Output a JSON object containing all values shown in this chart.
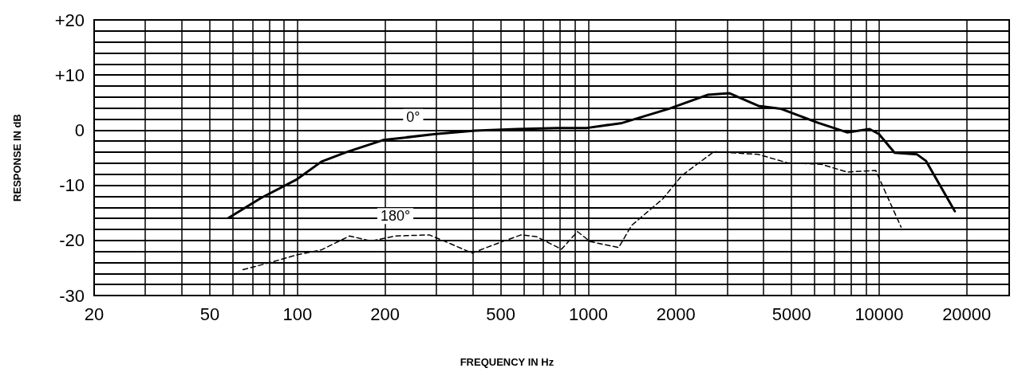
{
  "chart_data": {
    "type": "line",
    "xlabel": "FREQUENCY IN Hz",
    "ylabel": "RESPONSE IN dB",
    "log": "x",
    "grid": true,
    "marker": "none",
    "xlim": [
      20,
      28000
    ],
    "ylim": [
      -30,
      20
    ],
    "xticks": [
      20,
      {
        "value": 30,
        "label": null
      },
      {
        "value": 40,
        "label": null
      },
      50,
      {
        "value": 60,
        "label": null
      },
      {
        "value": 70,
        "label": null
      },
      {
        "value": 80,
        "label": null
      },
      {
        "value": 90,
        "label": null
      },
      100,
      200,
      {
        "value": 300,
        "label": null
      },
      {
        "value": 400,
        "label": null
      },
      500,
      {
        "value": 600,
        "label": null
      },
      {
        "value": 700,
        "label": null
      },
      {
        "value": 800,
        "label": null
      },
      {
        "value": 900,
        "label": null
      },
      1000,
      2000,
      {
        "value": 3000,
        "label": null
      },
      {
        "value": 4000,
        "label": null
      },
      5000,
      {
        "value": 6000,
        "label": null
      },
      {
        "value": 7000,
        "label": null
      },
      {
        "value": 8000,
        "label": null
      },
      {
        "value": 9000,
        "label": null
      },
      10000,
      20000
    ],
    "yticks": [
      -30,
      {
        "value": -28,
        "label": null
      },
      {
        "value": -26,
        "label": null
      },
      {
        "value": -24,
        "label": null
      },
      {
        "value": -22,
        "label": null
      },
      -20,
      {
        "value": -18,
        "label": null
      },
      {
        "value": -16,
        "label": null
      },
      {
        "value": -14,
        "label": null
      },
      {
        "value": -12,
        "label": null
      },
      -10,
      {
        "value": -8,
        "label": null
      },
      {
        "value": -6,
        "label": null
      },
      {
        "value": -4,
        "label": null
      },
      {
        "value": -2,
        "label": null
      },
      0,
      {
        "value": 2,
        "label": null
      },
      {
        "value": 4,
        "label": null
      },
      {
        "value": 6,
        "label": null
      },
      {
        "value": 8,
        "label": null
      },
      {
        "value": 10,
        "label": "+10"
      },
      {
        "value": 12,
        "label": null
      },
      {
        "value": 14,
        "label": null
      },
      {
        "value": 16,
        "label": null
      },
      {
        "value": 18,
        "label": null
      },
      {
        "value": 20,
        "label": "+20"
      }
    ],
    "annotations": [
      {
        "text": "0°",
        "x": 250,
        "y": -1.2
      },
      {
        "text": "180°",
        "x": 217,
        "y": -19.2
      }
    ],
    "series": [
      {
        "color": "#000000",
        "line_style": "solid",
        "x": [
          58,
          75,
          99,
          121,
          147,
          197,
          298,
          408,
          570,
          782,
          990,
          1306,
          1900,
          2570,
          3060,
          3845,
          4580,
          6190,
          7760,
          9270,
          9980,
          11300,
          13500,
          14500,
          18200
        ],
        "values": [
          -15.9,
          -12.3,
          -9.0,
          -5.7,
          -4.0,
          -1.8,
          -0.7,
          -0.1,
          0.2,
          0.4,
          0.4,
          1.3,
          3.9,
          6.4,
          6.7,
          4.4,
          3.9,
          1.3,
          -0.4,
          0.2,
          -0.7,
          -4.1,
          -4.4,
          -5.6,
          -14.7
        ]
      },
      {
        "color": "#000000",
        "line_style": "dashed",
        "x": [
          65,
          82,
          100,
          121,
          151,
          179,
          217,
          284,
          336,
          398,
          484,
          587,
          662,
          809,
          918,
          1014,
          1272,
          1408,
          1808,
          2100,
          2705,
          3845,
          4820,
          6340,
          7760,
          9730,
          11000,
          11900
        ],
        "values": [
          -25.3,
          -23.9,
          -22.6,
          -21.7,
          -19.2,
          -20.1,
          -19.2,
          -19.0,
          -20.6,
          -22.3,
          -20.6,
          -19.0,
          -19.3,
          -21.6,
          -18.4,
          -20.2,
          -21.3,
          -17.3,
          -12.4,
          -8.2,
          -3.9,
          -4.4,
          -5.9,
          -6.2,
          -7.6,
          -7.3,
          -13.6,
          -17.6
        ]
      }
    ]
  }
}
